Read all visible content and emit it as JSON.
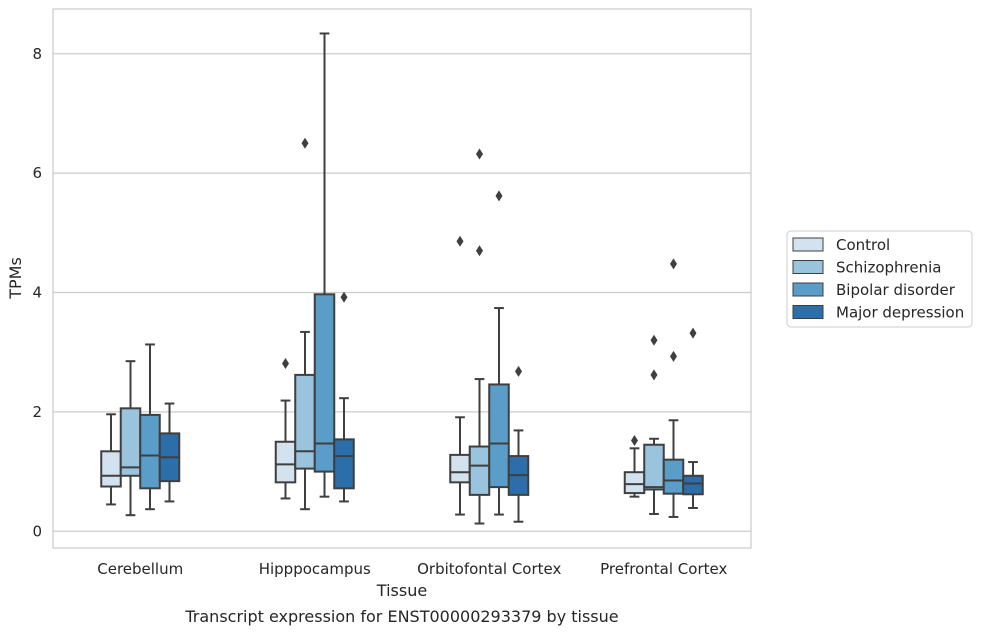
{
  "chart_data": {
    "type": "boxplot",
    "xlabel": "Tissue",
    "ylabel": "TPMs",
    "caption": "Transcript expression for ENST00000293379 by tissue",
    "ylim": [
      -0.28,
      8.75
    ],
    "yticks": [
      0,
      2,
      4,
      6,
      8
    ],
    "grid": "horizontal",
    "legend_position": "right",
    "categories": [
      "Cerebellum",
      "Hipppocampus",
      "Orbitofontal Cortex",
      "Prefrontal Cortex"
    ],
    "series": [
      {
        "name": "Control",
        "color": "#d3e2ef",
        "boxes": [
          {
            "whislo": 0.45,
            "q1": 0.75,
            "med": 0.93,
            "q3": 1.34,
            "whishi": 1.96,
            "fliers": []
          },
          {
            "whislo": 0.55,
            "q1": 0.82,
            "med": 1.12,
            "q3": 1.5,
            "whishi": 2.19,
            "fliers": [
              2.81
            ]
          },
          {
            "whislo": 0.28,
            "q1": 0.82,
            "med": 0.99,
            "q3": 1.28,
            "whishi": 1.91,
            "fliers": [
              4.86
            ]
          },
          {
            "whislo": 0.58,
            "q1": 0.64,
            "med": 0.79,
            "q3": 0.99,
            "whishi": 1.39,
            "fliers": [
              1.52
            ]
          }
        ]
      },
      {
        "name": "Schizophrenia",
        "color": "#9ac4dd",
        "boxes": [
          {
            "whislo": 0.27,
            "q1": 0.93,
            "med": 1.07,
            "q3": 2.06,
            "whishi": 2.85,
            "fliers": []
          },
          {
            "whislo": 0.37,
            "q1": 1.05,
            "med": 1.34,
            "q3": 2.62,
            "whishi": 3.34,
            "fliers": [
              6.5
            ]
          },
          {
            "whislo": 0.13,
            "q1": 0.61,
            "med": 1.1,
            "q3": 1.42,
            "whishi": 2.55,
            "fliers": [
              4.7,
              6.32
            ]
          },
          {
            "whislo": 0.29,
            "q1": 0.7,
            "med": 0.74,
            "q3": 1.45,
            "whishi": 1.55,
            "fliers": [
              2.62,
              3.2
            ]
          }
        ]
      },
      {
        "name": "Bipolar disorder",
        "color": "#5b9dc9",
        "boxes": [
          {
            "whislo": 0.37,
            "q1": 0.72,
            "med": 1.27,
            "q3": 1.95,
            "whishi": 3.13,
            "fliers": []
          },
          {
            "whislo": 0.58,
            "q1": 1.0,
            "med": 1.47,
            "q3": 3.97,
            "whishi": 8.34,
            "fliers": []
          },
          {
            "whislo": 0.28,
            "q1": 0.74,
            "med": 1.47,
            "q3": 2.46,
            "whishi": 3.74,
            "fliers": [
              5.62
            ]
          },
          {
            "whislo": 0.24,
            "q1": 0.63,
            "med": 0.85,
            "q3": 1.2,
            "whishi": 1.86,
            "fliers": [
              2.93,
              4.48
            ]
          }
        ]
      },
      {
        "name": "Major depression",
        "color": "#2c6ea9",
        "boxes": [
          {
            "whislo": 0.5,
            "q1": 0.84,
            "med": 1.24,
            "q3": 1.64,
            "whishi": 2.14,
            "fliers": []
          },
          {
            "whislo": 0.5,
            "q1": 0.72,
            "med": 1.26,
            "q3": 1.54,
            "whishi": 2.23,
            "fliers": [
              3.92
            ]
          },
          {
            "whislo": 0.16,
            "q1": 0.61,
            "med": 0.94,
            "q3": 1.26,
            "whishi": 1.69,
            "fliers": [
              2.68
            ]
          },
          {
            "whislo": 0.39,
            "q1": 0.62,
            "med": 0.8,
            "q3": 0.93,
            "whishi": 1.16,
            "fliers": [
              3.32
            ]
          }
        ]
      }
    ]
  }
}
